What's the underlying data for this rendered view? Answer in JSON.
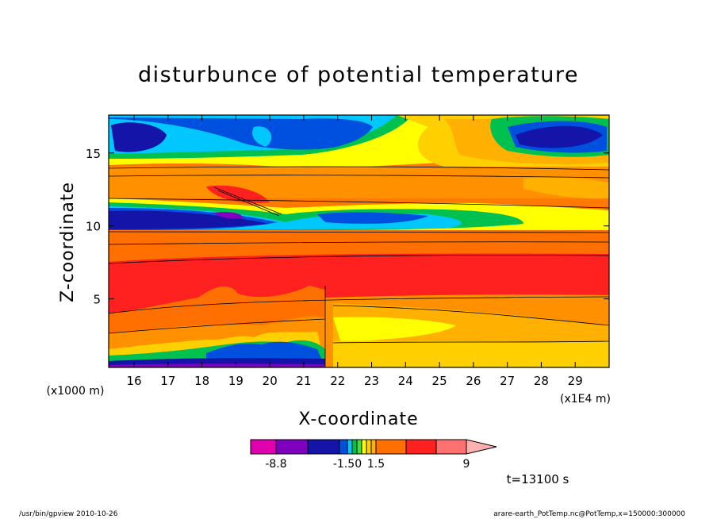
{
  "chart_data": {
    "type": "heatmap",
    "title": "disturbunce of potential temperature",
    "xlabel": "X-coordinate",
    "ylabel": "Z-coordinate",
    "x_unit_left": "(x1000 m)",
    "x_unit_right": "(x1E4 m)",
    "x_ticks": [
      "16",
      "17",
      "18",
      "19",
      "20",
      "21",
      "22",
      "23",
      "24",
      "25",
      "26",
      "27",
      "28",
      "29"
    ],
    "y_ticks": [
      "5",
      "10",
      "15"
    ],
    "xlim": [
      15.25,
      30.0
    ],
    "ylim": [
      0.3,
      17.6
    ],
    "colorbar": {
      "labels": [
        "-8.8",
        "-1.50",
        "1.5",
        "9"
      ],
      "colors": [
        "#e000b0",
        "#8000c0",
        "#1414a8",
        "#0050e0",
        "#00c8ff",
        "#00c050",
        "#40e040",
        "#ffff00",
        "#ffd000",
        "#ffb000",
        "#ff7000",
        "#ff2020",
        "#ff7070",
        "#ffb0b0"
      ]
    },
    "time_label": "t=13100 s"
  },
  "footer": {
    "left": "/usr/bin/gpview   2010-10-26",
    "right": "arare-earth_PotTemp.nc@PotTemp,x=150000:300000"
  }
}
